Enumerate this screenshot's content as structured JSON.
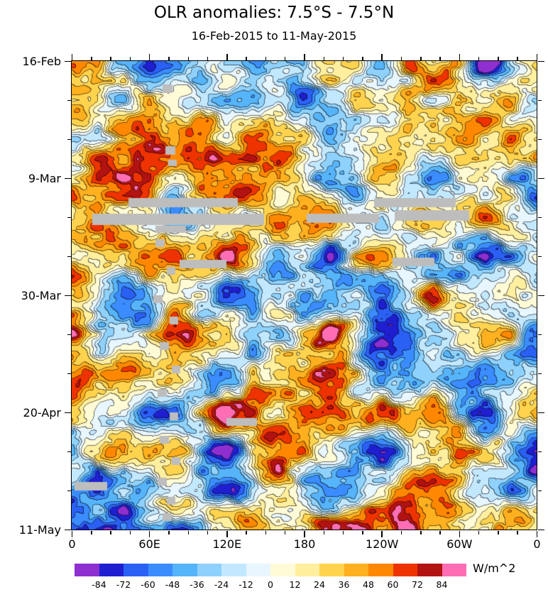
{
  "chart_data": {
    "type": "heatmap",
    "title": "OLR anomalies: 7.5°S - 7.5°N",
    "subtitle": "16-Feb-2015 to 11-May-2015",
    "x_axis": {
      "tick_labels": [
        "0",
        "60E",
        "120E",
        "180",
        "120W",
        "60W",
        "0"
      ]
    },
    "y_axis": {
      "tick_labels": [
        "16-Feb",
        "9-Mar",
        "30-Mar",
        "20-Apr",
        "11-May"
      ]
    },
    "colorbar": {
      "units": "W/m^2",
      "levels": [
        -84,
        -72,
        -60,
        -48,
        -36,
        -24,
        -12,
        0,
        12,
        24,
        36,
        48,
        60,
        72,
        84
      ],
      "colors": [
        "#8f2fd0",
        "#1f1fd1",
        "#2b60f5",
        "#3b8dff",
        "#56b4fa",
        "#8ed1fc",
        "#c2e8ff",
        "#e8f6ff",
        "#fffbd6",
        "#ffef9e",
        "#ffd34e",
        "#ffb01f",
        "#ff8800",
        "#ee3300",
        "#b31212",
        "#ff6eb4"
      ]
    },
    "field": {
      "kind": "procedural-anomaly-field",
      "seed": 20150216,
      "scale": 75,
      "octaves": [
        {
          "nx": 9,
          "ny": 12,
          "amp": 1.0
        },
        {
          "nx": 18,
          "ny": 24,
          "amp": 0.5
        },
        {
          "nx": 36,
          "ny": 48,
          "amp": 0.27
        },
        {
          "nx": 72,
          "ny": 96,
          "amp": 0.12
        }
      ]
    },
    "missing_data": {
      "color": "#bdbdbd",
      "rects": [
        [
          0.195,
          0.05,
          0.022,
          0.018
        ],
        [
          0.201,
          0.182,
          0.022,
          0.018
        ],
        [
          0.207,
          0.21,
          0.018,
          0.014
        ],
        [
          0.122,
          0.292,
          0.235,
          0.02
        ],
        [
          0.65,
          0.292,
          0.175,
          0.02
        ],
        [
          0.045,
          0.326,
          0.37,
          0.024
        ],
        [
          0.505,
          0.326,
          0.155,
          0.02
        ],
        [
          0.695,
          0.318,
          0.16,
          0.022
        ],
        [
          0.18,
          0.352,
          0.065,
          0.015
        ],
        [
          0.232,
          0.424,
          0.1,
          0.018
        ],
        [
          0.69,
          0.42,
          0.09,
          0.018
        ],
        [
          0.333,
          0.762,
          0.066,
          0.016
        ],
        [
          0.006,
          0.898,
          0.07,
          0.018
        ],
        [
          0.18,
          0.38,
          0.02,
          0.016
        ],
        [
          0.205,
          0.44,
          0.018,
          0.016
        ],
        [
          0.175,
          0.5,
          0.02,
          0.016
        ],
        [
          0.21,
          0.545,
          0.018,
          0.016
        ],
        [
          0.19,
          0.6,
          0.02,
          0.016
        ],
        [
          0.215,
          0.65,
          0.018,
          0.016
        ],
        [
          0.185,
          0.7,
          0.02,
          0.016
        ],
        [
          0.21,
          0.75,
          0.018,
          0.016
        ],
        [
          0.19,
          0.8,
          0.02,
          0.016
        ],
        [
          0.215,
          0.845,
          0.018,
          0.016
        ],
        [
          0.185,
          0.89,
          0.02,
          0.016
        ],
        [
          0.205,
          0.93,
          0.018,
          0.016
        ],
        [
          0.195,
          0.965,
          0.02,
          0.016
        ]
      ]
    }
  }
}
